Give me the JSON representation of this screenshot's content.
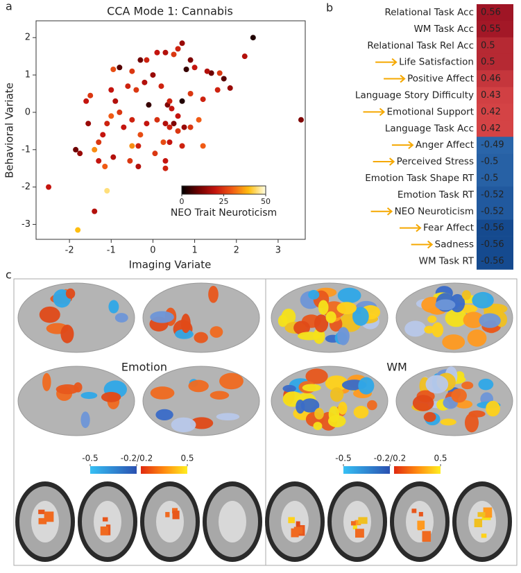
{
  "panel_labels": [
    "a",
    "b",
    "c"
  ],
  "chart_data": [
    {
      "type": "scatter",
      "title": "CCA Mode 1: Cannabis",
      "x_label": "Imaging Variate",
      "y_label": "Behavioral Variate",
      "x": [
        3.55,
        2.4,
        2.2,
        1.85,
        1.7,
        1.55,
        1.4,
        1.3,
        1.6,
        1.0,
        0.9,
        0.8,
        0.7,
        0.6,
        0.5,
        0.3,
        0.1,
        0.0,
        -0.15,
        -0.3,
        -0.5,
        -0.8,
        -0.95,
        -1.0,
        -0.6,
        -0.4,
        -0.2,
        0.2,
        0.35,
        0.45,
        0.7,
        0.9,
        1.2,
        1.1,
        0.9,
        0.6,
        0.4,
        0.3,
        0.1,
        -0.1,
        -0.15,
        -0.3,
        -0.5,
        -0.7,
        -0.8,
        -0.9,
        -1.0,
        -1.1,
        -1.2,
        -1.3,
        -1.4,
        -1.55,
        -1.6,
        -1.5,
        -1.85,
        -1.75,
        -1.3,
        -1.15,
        -0.95,
        -0.55,
        -0.35,
        -0.5,
        0.25,
        0.3,
        0.3,
        0.05,
        0.4,
        0.7,
        1.2,
        0.75,
        -0.35,
        -2.5,
        -1.4,
        -1.1,
        -1.8,
        0.4,
        0.5,
        0.6
      ],
      "values": [
        -0.2,
        2.0,
        1.5,
        0.65,
        0.9,
        0.6,
        1.05,
        1.1,
        1.05,
        1.2,
        1.4,
        1.15,
        1.85,
        1.7,
        1.55,
        1.6,
        1.6,
        1.0,
        1.4,
        1.4,
        1.1,
        1.2,
        1.15,
        0.6,
        0.7,
        0.6,
        0.8,
        0.7,
        0.2,
        0.1,
        0.3,
        0.5,
        0.35,
        -0.2,
        -0.4,
        -0.1,
        -0.4,
        -0.3,
        -0.2,
        0.2,
        -0.3,
        -0.6,
        -0.2,
        -0.4,
        0.0,
        0.3,
        -0.1,
        -0.3,
        -0.6,
        -0.8,
        -1.0,
        -0.3,
        0.3,
        0.45,
        -1.0,
        -1.1,
        -1.3,
        -1.45,
        -1.2,
        -1.3,
        -0.9,
        -0.9,
        -0.8,
        -1.3,
        -1.5,
        -1.1,
        -0.8,
        -0.9,
        -0.9,
        -0.4,
        -1.45,
        -2.0,
        -2.65,
        -2.1,
        -3.15,
        0.3,
        -0.3,
        -0.5
      ],
      "color_values": [
        12,
        3,
        18,
        15,
        8,
        22,
        10,
        18,
        25,
        20,
        12,
        5,
        15,
        22,
        25,
        18,
        20,
        15,
        22,
        10,
        25,
        8,
        28,
        20,
        22,
        25,
        18,
        22,
        12,
        20,
        3,
        25,
        22,
        30,
        25,
        20,
        22,
        18,
        24,
        5,
        20,
        28,
        22,
        20,
        25,
        18,
        30,
        22,
        20,
        25,
        35,
        15,
        20,
        25,
        10,
        15,
        20,
        30,
        18,
        25,
        22,
        35,
        28,
        20,
        22,
        25,
        20,
        22,
        30,
        15,
        18,
        20,
        18,
        45,
        40,
        22,
        12,
        25
      ],
      "xlim": [
        -2.8,
        3.65
      ],
      "ylim": [
        -3.4,
        2.45
      ],
      "xticks": [
        -2,
        -1,
        0,
        1,
        2,
        3
      ],
      "yticks": [
        -3,
        -2,
        -1,
        0,
        1,
        2
      ],
      "colorbar": {
        "label": "NEO Trait Neuroticism",
        "lim": [
          0,
          50
        ],
        "ticks": [
          0,
          25,
          50
        ],
        "colormap": [
          [
            0,
            "#000000"
          ],
          [
            10,
            "#6e0000"
          ],
          [
            20,
            "#c4140e"
          ],
          [
            30,
            "#f05a14"
          ],
          [
            40,
            "#ffbe10"
          ],
          [
            50,
            "#ffffe6"
          ]
        ]
      }
    },
    {
      "type": "heatmap",
      "categories": [
        "Relational Task Acc",
        "WM Task Acc",
        "Relational Task Rel Acc",
        "Life Satisfaction",
        "Positive Affect",
        "Language Story Difficulty",
        "Emotional Support",
        "Language Task Acc",
        "Anger Affect",
        "Perceived Stress",
        "Emotion Task Shape RT",
        "Emotion Task RT",
        "NEO Neuroticism",
        "Fear Affect",
        "Sadness",
        "WM Task RT"
      ],
      "values": [
        0.56,
        0.55,
        0.5,
        0.5,
        0.46,
        0.43,
        0.42,
        0.42,
        -0.49,
        -0.5,
        -0.5,
        -0.52,
        -0.52,
        -0.56,
        -0.56,
        -0.56
      ],
      "highlighted": [
        false,
        false,
        false,
        true,
        true,
        false,
        true,
        false,
        true,
        true,
        false,
        false,
        true,
        true,
        true,
        false
      ],
      "arrow_color": "#f5a800",
      "colormap": [
        [
          -0.6,
          "#0a3a80"
        ],
        [
          -0.45,
          "#3575b8"
        ],
        [
          0,
          "#f7f7f7"
        ],
        [
          0.4,
          "#dc4a4a"
        ],
        [
          0.6,
          "#90081c"
        ]
      ]
    }
  ],
  "brain_panels": [
    {
      "label": "Emotion",
      "colorbar_ticks": [
        -0.5,
        {
          "value": -0.2,
          "label": "-0.2/0.2"
        },
        0.5
      ]
    },
    {
      "label": "WM",
      "colorbar_ticks": [
        -0.5,
        {
          "value": -0.2,
          "label": "-0.2/0.2"
        },
        0.5
      ]
    }
  ]
}
